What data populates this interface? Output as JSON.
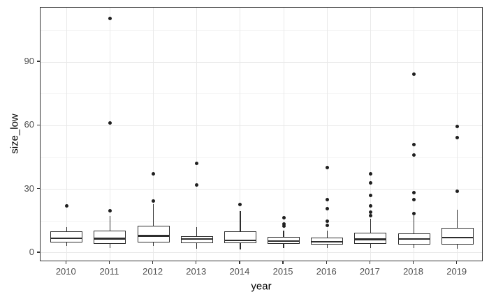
{
  "chart_data": {
    "type": "boxplot",
    "title": "",
    "xlabel": "year",
    "ylabel": "size_low",
    "categories": [
      "2010",
      "2011",
      "2012",
      "2013",
      "2014",
      "2015",
      "2016",
      "2017",
      "2018",
      "2019"
    ],
    "y_ticks": [
      0,
      30,
      60,
      90
    ],
    "y_minor_ticks": [
      15,
      45,
      75,
      105
    ],
    "ylim": [
      -4.3,
      115.7
    ],
    "grid": true,
    "legend": "none",
    "series": [
      {
        "label": "2010",
        "lower_whisker": 3.1,
        "q1": 5.0,
        "median": 6.9,
        "q3": 10.2,
        "upper_whisker": 12.2,
        "outliers": [
          22.3
        ]
      },
      {
        "label": "2011",
        "lower_whisker": 2.3,
        "q1": 4.2,
        "median": 6.8,
        "q3": 10.5,
        "upper_whisker": 17.3,
        "outliers": [
          19.8,
          61.3,
          110.5
        ]
      },
      {
        "label": "2012",
        "lower_whisker": 3.1,
        "q1": 4.8,
        "median": 8.0,
        "q3": 12.7,
        "upper_whisker": 22.9,
        "outliers": [
          24.5,
          37.2
        ]
      },
      {
        "label": "2013",
        "lower_whisker": 2.0,
        "q1": 4.5,
        "median": 6.6,
        "q3": 7.9,
        "upper_whisker": 12.2,
        "outliers": [
          32.0,
          42.3
        ]
      },
      {
        "label": "2014",
        "lower_whisker": 1.5,
        "q1": 4.5,
        "median": 5.9,
        "q3": 10.2,
        "upper_whisker": 19.8,
        "outliers": [
          22.7
        ]
      },
      {
        "label": "2015",
        "lower_whisker": 2.3,
        "q1": 4.3,
        "median": 5.6,
        "q3": 7.6,
        "upper_whisker": 10.5,
        "outliers": [
          12.6,
          13.5,
          16.6
        ]
      },
      {
        "label": "2016",
        "lower_whisker": 2.3,
        "q1": 3.9,
        "median": 5.3,
        "q3": 7.2,
        "upper_whisker": 10.5,
        "outliers": [
          12.8,
          14.9,
          21.0,
          25.1,
          40.2
        ]
      },
      {
        "label": "2017",
        "lower_whisker": 2.4,
        "q1": 4.4,
        "median": 6.4,
        "q3": 9.5,
        "upper_whisker": 16.2,
        "outliers": [
          17.4,
          19.3,
          22.3,
          27.2,
          33.1,
          37.3
        ]
      },
      {
        "label": "2018",
        "lower_whisker": 2.3,
        "q1": 3.9,
        "median": 6.6,
        "q3": 9.2,
        "upper_whisker": 17.6,
        "outliers": [
          18.4,
          25.2,
          28.3,
          46.2,
          51.1,
          84.3
        ]
      },
      {
        "label": "2019",
        "lower_whisker": 2.0,
        "q1": 3.9,
        "median": 7.2,
        "q3": 11.9,
        "upper_whisker": 20.4,
        "outliers": [
          29.1,
          54.4,
          59.5
        ]
      }
    ],
    "colors": {
      "box_stroke": "#2d2d2d",
      "outlier_dot": "#1f1f1f",
      "grid_major": "#e9e9e9",
      "grid_minor": "#f3f3f3",
      "panel_border": "#333333",
      "tick_label": "#4d4d4d",
      "axis_title": "#000000",
      "panel_bg": "#ffffff"
    }
  }
}
